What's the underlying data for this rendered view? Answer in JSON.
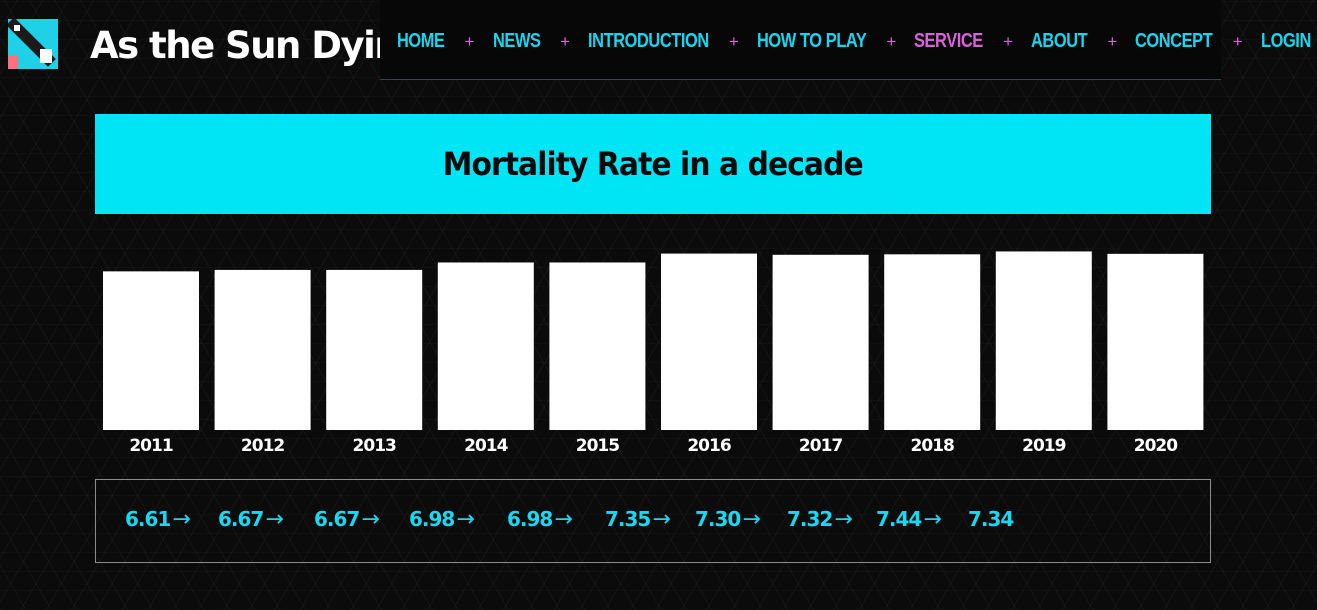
{
  "brand": {
    "name": "As the Sun Dying",
    "logo_icon": "slashed-square-logo-icon",
    "colors": {
      "logo_bg": "#1fd0e6",
      "logo_accent": "#ff6f82"
    }
  },
  "nav": {
    "items": [
      {
        "label": "HOME"
      },
      {
        "label": "NEWS"
      },
      {
        "label": "INTRODUCTION"
      },
      {
        "label": "HOW TO PLAY"
      },
      {
        "label": "SERVICE",
        "active": true
      },
      {
        "label": "ABOUT"
      },
      {
        "label": "CONCEPT"
      },
      {
        "label": "LOGIN"
      }
    ],
    "separator": "+",
    "colors": {
      "link": "#18d6ee",
      "active": "#d764d8",
      "separator": "#d764d8"
    }
  },
  "banner": {
    "title": "Mortality Rate in a decade",
    "color": "#00e5f5"
  },
  "chart_data": {
    "type": "bar",
    "categories": [
      "2011",
      "2012",
      "2013",
      "2014",
      "2015",
      "2016",
      "2017",
      "2018",
      "2019",
      "2020"
    ],
    "values": [
      6.61,
      6.67,
      6.67,
      6.98,
      6.98,
      7.35,
      7.3,
      7.32,
      7.44,
      7.34
    ],
    "value_labels": [
      "6.61",
      "6.67",
      "6.67",
      "6.98",
      "6.98",
      "7.35",
      "7.30",
      "7.32",
      "7.44",
      "7.34"
    ],
    "title": "",
    "bar_color": "#ffffff",
    "grid": false
  },
  "values_panel": {
    "arrow": "→"
  }
}
